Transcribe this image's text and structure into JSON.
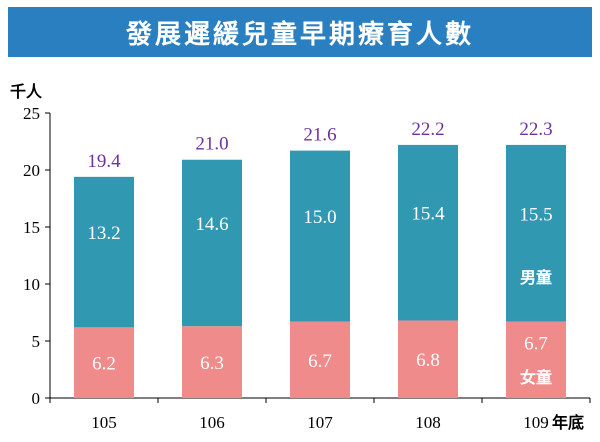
{
  "title": "發展遲緩兒童早期療育人數",
  "chart_data": {
    "type": "bar",
    "stacked": true,
    "title": "發展遲緩兒童早期療育人數",
    "ylabel": "千人",
    "xlabel": "年底",
    "categories": [
      "105",
      "106",
      "107",
      "108",
      "109"
    ],
    "series": [
      {
        "name": "女童",
        "values": [
          6.2,
          6.3,
          6.7,
          6.8,
          6.7
        ],
        "color": "#ef8b8b"
      },
      {
        "name": "男童",
        "values": [
          13.2,
          14.6,
          15.0,
          15.4,
          15.5
        ],
        "color": "#3198b2"
      }
    ],
    "totals": [
      19.4,
      21.0,
      21.6,
      22.2,
      22.3
    ],
    "ylim": [
      0,
      25
    ],
    "yticks": [
      0,
      5,
      10,
      15,
      20,
      25
    ],
    "total_label_color": "#7030a0",
    "grid": false
  }
}
